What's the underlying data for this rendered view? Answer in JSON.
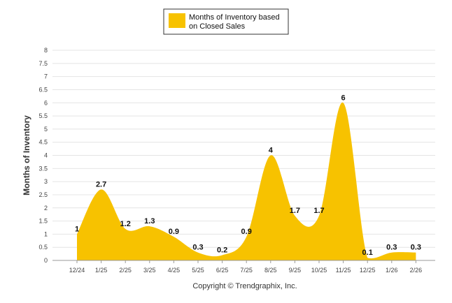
{
  "chart_data": {
    "type": "area",
    "categories": [
      "12/24",
      "1/25",
      "2/25",
      "3/25",
      "4/25",
      "5/25",
      "6/25",
      "7/25",
      "8/25",
      "9/25",
      "10/25",
      "11/25",
      "12/25",
      "1/26",
      "2/26"
    ],
    "series": [
      {
        "name": "Months of Inventory based on Closed Sales",
        "values": [
          1,
          2.7,
          1.2,
          1.3,
          0.9,
          0.3,
          0.2,
          0.9,
          4,
          1.7,
          1.7,
          6,
          0.1,
          0.3,
          0.3
        ],
        "color": "#F7C200"
      }
    ],
    "ylabel": "Months of Inventory",
    "ylim": [
      0,
      8
    ],
    "yticks": [
      "0",
      "0.5",
      "1",
      "1.5",
      "2",
      "2.5",
      "3",
      "3.5",
      "4",
      "4.5",
      "5",
      "5.5",
      "6",
      "6.5",
      "7",
      "7.5",
      "8"
    ],
    "grid": true,
    "legend_position": "top-center",
    "legend_lines": [
      "Months of Inventory based",
      "on Closed Sales"
    ],
    "credit": "Copyright © Trendgraphix, Inc."
  }
}
